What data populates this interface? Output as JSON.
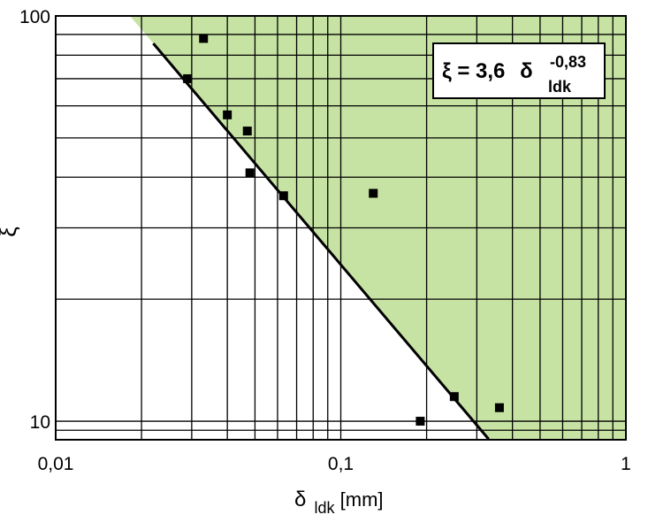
{
  "chart_data": {
    "type": "scatter",
    "x_scale": "log",
    "y_scale": "log",
    "xlim": [
      0.01,
      1
    ],
    "ylim": [
      9,
      100
    ],
    "x_ticks": [
      "0,01",
      "0,1",
      "1"
    ],
    "y_ticks": [
      "100",
      "10"
    ],
    "xlabel": {
      "symbol": "δ",
      "subscript": "ldk",
      "unit": "[mm]"
    },
    "ylabel": "ξ",
    "grid": true,
    "shaded_region_color": "#c6e3a4",
    "fit_line_color": "#000000",
    "marker_color": "#000000",
    "points": [
      {
        "x": 0.033,
        "y": 88
      },
      {
        "x": 0.029,
        "y": 70
      },
      {
        "x": 0.04,
        "y": 57
      },
      {
        "x": 0.047,
        "y": 52
      },
      {
        "x": 0.048,
        "y": 41
      },
      {
        "x": 0.063,
        "y": 36
      },
      {
        "x": 0.13,
        "y": 36.5
      },
      {
        "x": 0.25,
        "y": 11.5
      },
      {
        "x": 0.36,
        "y": 10.8
      },
      {
        "x": 0.19,
        "y": 10
      }
    ],
    "fit": {
      "coefficient": 3.6,
      "exponent": -0.83,
      "x_range": [
        0.022,
        0.33
      ]
    },
    "annotation": {
      "lhs": "ξ = 3,6",
      "symbol": "δ",
      "exponent": "-0,83",
      "subscript": "ldk"
    }
  }
}
